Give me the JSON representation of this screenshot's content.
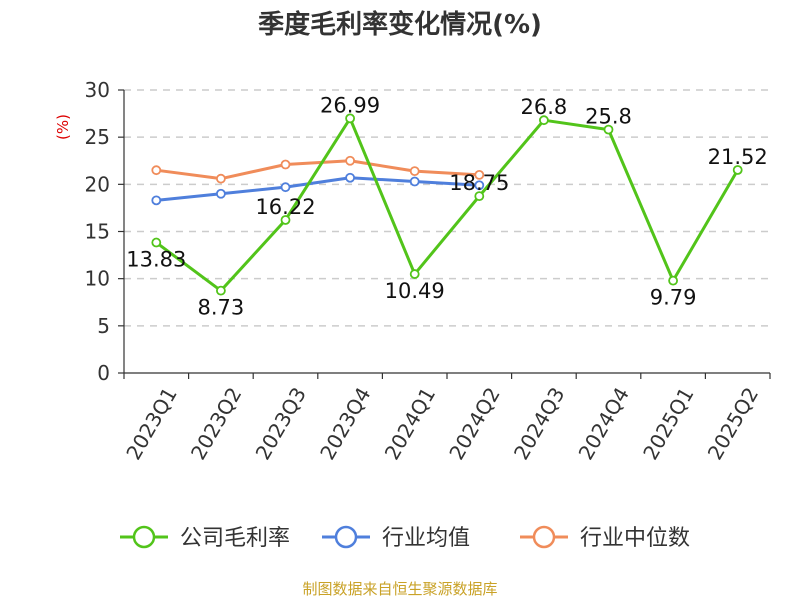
{
  "chart_data": {
    "type": "line",
    "title": "季度毛利率变化情况(%)",
    "ylabel": "(%)",
    "ylim": [
      0,
      30
    ],
    "yticks": [
      0,
      5,
      10,
      15,
      20,
      25,
      30
    ],
    "categories": [
      "2023Q1",
      "2023Q2",
      "2023Q3",
      "2023Q4",
      "2024Q1",
      "2024Q2",
      "2024Q3",
      "2024Q4",
      "2025Q1",
      "2025Q2"
    ],
    "grid": true,
    "legend_position": "bottom",
    "series": [
      {
        "name": "公司毛利率",
        "color": "#52c41a",
        "values": [
          13.83,
          8.73,
          16.22,
          26.99,
          10.49,
          18.75,
          26.8,
          25.8,
          9.79,
          21.52
        ],
        "labels": [
          "13.83",
          "8.73",
          "16.22",
          "26.99",
          "10.49",
          "18.75",
          "26.8",
          "25.8",
          "9.79",
          "21.52"
        ]
      },
      {
        "name": "行业均值",
        "color": "#4f7fdc",
        "values": [
          18.3,
          19.0,
          19.7,
          20.7,
          20.3,
          19.9,
          null,
          null,
          null,
          null
        ]
      },
      {
        "name": "行业中位数",
        "color": "#f08c5a",
        "values": [
          21.5,
          20.6,
          22.1,
          22.5,
          21.4,
          21.0,
          null,
          null,
          null,
          null
        ]
      }
    ]
  },
  "footer": {
    "source": "制图数据来自恒生聚源数据库"
  }
}
